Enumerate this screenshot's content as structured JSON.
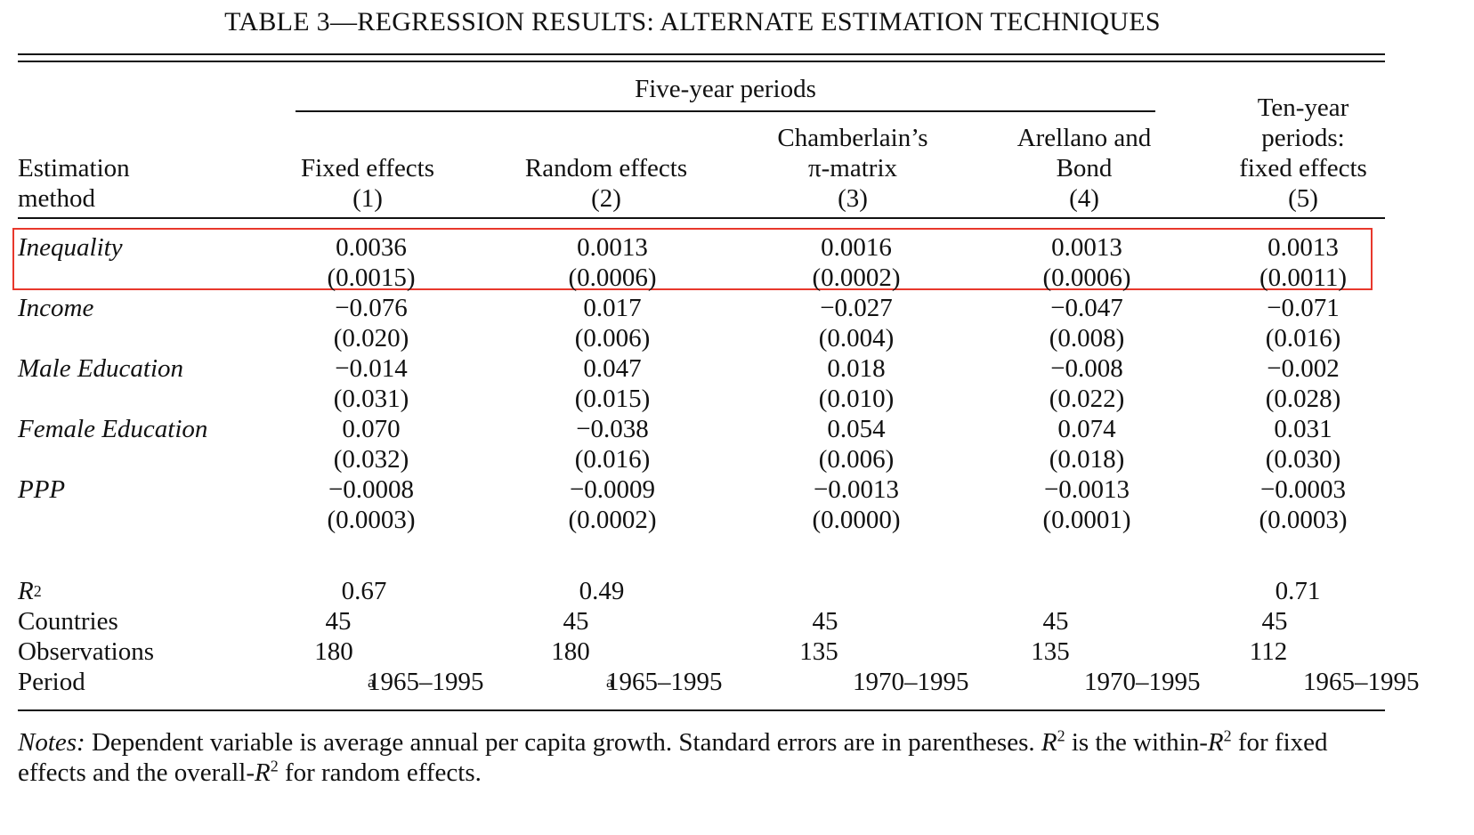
{
  "title": {
    "prefix": "TABLE 3—REGRESSION RESULTS: ALTERNATE ESTIMATION TECHNIQUES"
  },
  "header": {
    "spanner": "Five-year periods",
    "row_label_1": "Estimation",
    "row_label_2": "method",
    "columns": [
      {
        "line1": "",
        "line2": "",
        "line3": "Fixed effects",
        "num": "(1)"
      },
      {
        "line1": "",
        "line2": "",
        "line3": "Random effects",
        "num": "(2)"
      },
      {
        "line1": "",
        "line2": "Chamberlain’s",
        "line3": "π-matrix",
        "num": "(3)"
      },
      {
        "line1": "",
        "line2": "Arellano and",
        "line3": "Bond",
        "num": "(4)"
      },
      {
        "line1": "Ten-year",
        "line2": "periods:",
        "line3": "fixed effects",
        "num": "(5)"
      }
    ]
  },
  "variables": [
    {
      "name": "Inequality",
      "coef": [
        "0.0036",
        "0.0013",
        "0.0016",
        "0.0013",
        "0.0013"
      ],
      "se": [
        "(0.0015)",
        "(0.0006)",
        "(0.0002)",
        "(0.0006)",
        "(0.0011)"
      ]
    },
    {
      "name": "Income",
      "coef": [
        "−0.076",
        "0.017",
        "−0.027",
        "−0.047",
        "−0.071"
      ],
      "se": [
        "(0.020)",
        "(0.006)",
        "(0.004)",
        "(0.008)",
        "(0.016)"
      ]
    },
    {
      "name": "Male Education",
      "coef": [
        "−0.014",
        "0.047",
        "0.018",
        "−0.008",
        "−0.002"
      ],
      "se": [
        "(0.031)",
        "(0.015)",
        "(0.010)",
        "(0.022)",
        "(0.028)"
      ]
    },
    {
      "name": "Female Education",
      "coef": [
        "0.070",
        "−0.038",
        "0.054",
        "0.074",
        "0.031"
      ],
      "se": [
        "(0.032)",
        "(0.016)",
        "(0.006)",
        "(0.018)",
        "(0.030)"
      ]
    },
    {
      "name": "PPP",
      "coef": [
        "−0.0008",
        "−0.0009",
        "−0.0013",
        "−0.0013",
        "−0.0003"
      ],
      "se": [
        "(0.0003)",
        "(0.0002)",
        "(0.0000)",
        "(0.0001)",
        "(0.0003)"
      ]
    }
  ],
  "stats": {
    "r2_label": "R",
    "r2_sup": "2",
    "r2": [
      "0.67",
      "0.49",
      "",
      "",
      "0.71"
    ],
    "countries_label": "Countries",
    "countries": [
      "45",
      "45",
      "45",
      "45",
      "45"
    ],
    "observations_label": "Observations",
    "observations": [
      "180",
      "180",
      "135",
      "135",
      "112"
    ],
    "period_label": "Period",
    "period": [
      "1965–1995",
      "1965–1995",
      "1970–1995",
      "1970–1995",
      "1965–1995"
    ],
    "period_sup": [
      "a",
      "a",
      "",
      "",
      ""
    ]
  },
  "notes": {
    "label": "Notes:",
    "text1": " Dependent variable is average annual per capita growth. Standard errors are in parentheses. ",
    "r": "R",
    "sup": "2",
    "text2": " is the within-",
    "text3": " for fixed effects and the overall-",
    "text4": " for random effects."
  },
  "highlight_color": "#e8382c"
}
